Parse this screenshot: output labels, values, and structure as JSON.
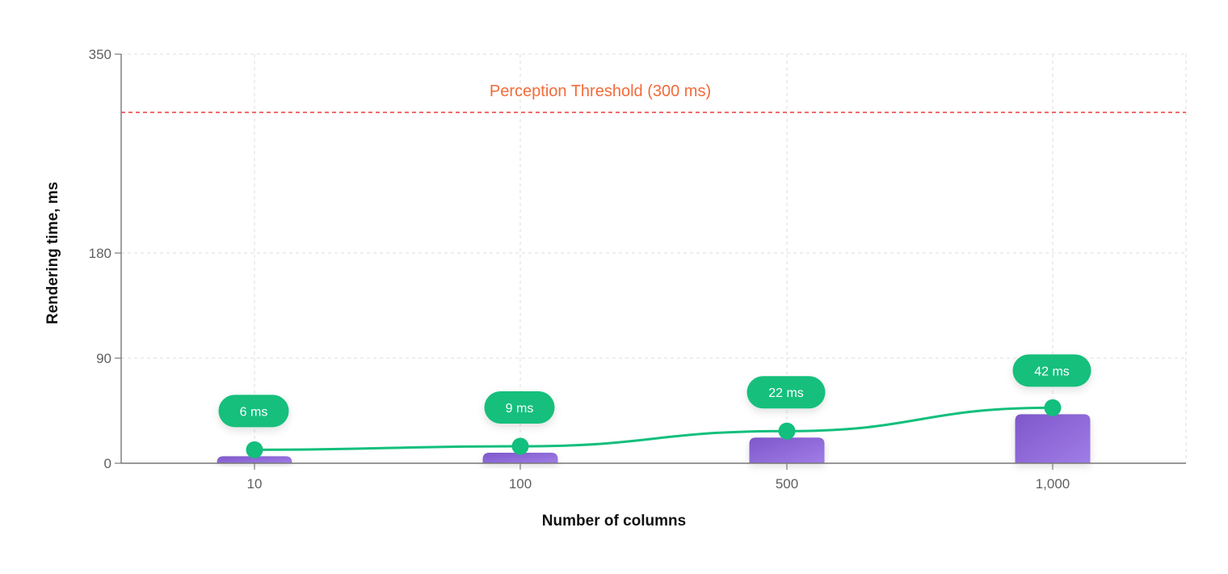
{
  "chart_data": {
    "type": "bar",
    "title": "",
    "xlabel": "Number of columns",
    "ylabel": "Rendering time, ms",
    "categories": [
      "10",
      "100",
      "500",
      "1,000"
    ],
    "series": [
      {
        "name": "Rendering time (bars)",
        "type": "bar",
        "values": [
          6,
          9,
          22,
          42
        ],
        "color": "#8a63d2"
      },
      {
        "name": "Rendering time (trend)",
        "type": "line",
        "values": [
          6,
          9,
          22,
          42
        ],
        "color": "#12bf7c"
      }
    ],
    "data_labels": [
      "6 ms",
      "9 ms",
      "22 ms",
      "42 ms"
    ],
    "y_ticks": [
      0,
      90,
      180,
      350
    ],
    "y_tick_labels": [
      "0",
      "90",
      "180",
      "350"
    ],
    "ylim": [
      0,
      350
    ],
    "y_scale_note": "non-uniform tick spacing",
    "annotations": [
      {
        "type": "hline",
        "y": 300,
        "label": "Perception Threshold (300 ms)",
        "color": "#f26b6b",
        "label_color": "#f26b3a",
        "style": "dashed"
      }
    ],
    "grid": true,
    "legend": "none"
  },
  "colors": {
    "bar_start": "#7e57c9",
    "bar_end": "#9d7ae6",
    "line": "#12bf7c",
    "pill": "#12bf7c",
    "threshold": "#f26b6b",
    "threshold_text": "#f26b3a",
    "axis": "#777777",
    "grid": "#e3e3e3"
  }
}
